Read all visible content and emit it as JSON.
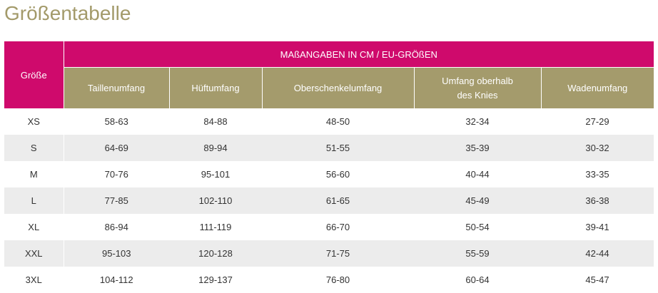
{
  "title": "Größentabelle",
  "table": {
    "size_header": "Größe",
    "group_header": "MAßANGABEN IN CM / EU-GRÖßEN",
    "columns": [
      "Taillenumfang",
      "Hüftumfang",
      "Oberschenkelumfang",
      "Umfang oberhalb\ndes Knies",
      "Wadenumfang"
    ],
    "rows": [
      {
        "size": "XS",
        "values": [
          "58-63",
          "84-88",
          "48-50",
          "32-34",
          "27-29"
        ]
      },
      {
        "size": "S",
        "values": [
          "64-69",
          "89-94",
          "51-55",
          "35-39",
          "30-32"
        ]
      },
      {
        "size": "M",
        "values": [
          "70-76",
          "95-101",
          "56-60",
          "40-44",
          "33-35"
        ]
      },
      {
        "size": "L",
        "values": [
          "77-85",
          "102-110",
          "61-65",
          "45-49",
          "36-38"
        ]
      },
      {
        "size": "XL",
        "values": [
          "86-94",
          "111-119",
          "66-70",
          "50-54",
          "39-41"
        ]
      },
      {
        "size": "XXL",
        "values": [
          "95-103",
          "120-128",
          "71-75",
          "55-59",
          "42-44"
        ]
      },
      {
        "size": "3XL",
        "values": [
          "104-112",
          "129-137",
          "76-80",
          "60-64",
          "45-47"
        ]
      }
    ]
  },
  "colors": {
    "title": "#a39a6a",
    "magenta_header": "#cf0a6c",
    "olive_header": "#a49b6c",
    "row_stripe": "#ececec"
  }
}
